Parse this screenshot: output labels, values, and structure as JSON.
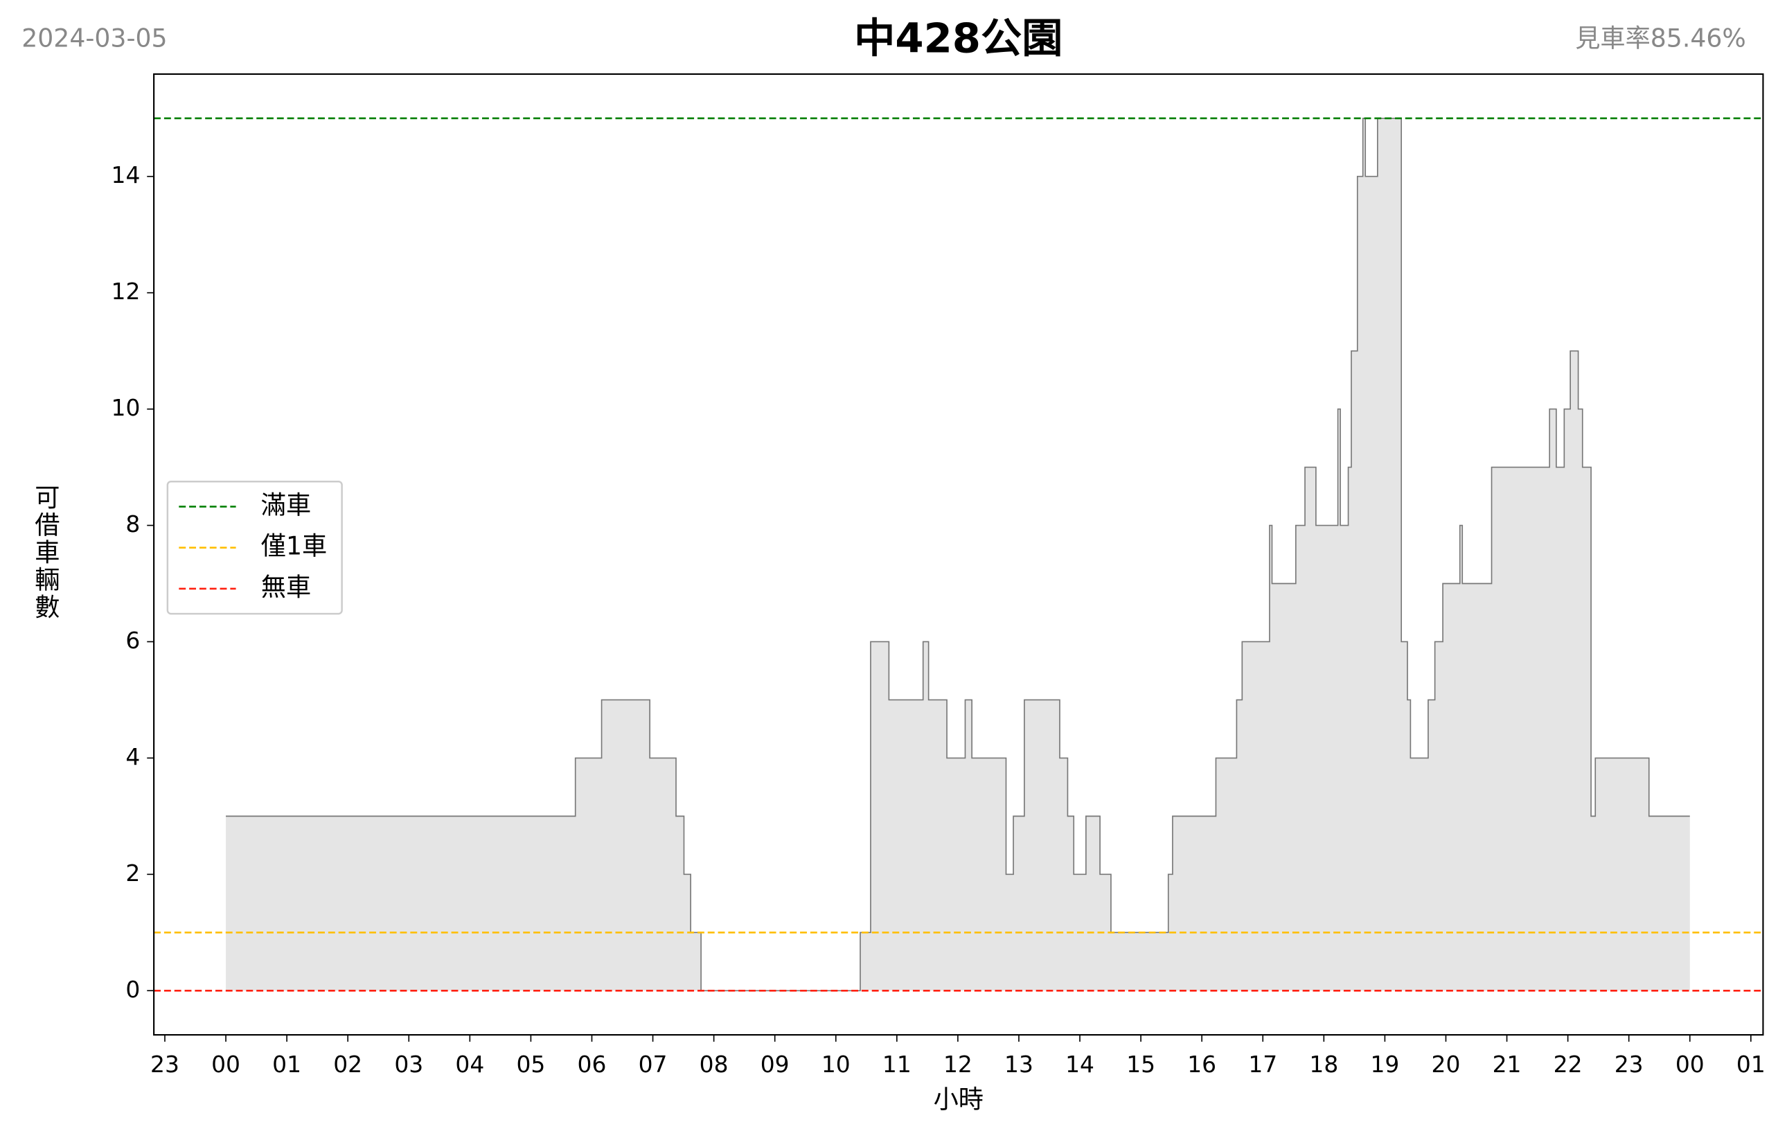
{
  "chart_data": {
    "type": "step-area",
    "title": "中428公園",
    "date_label": "2024-03-05",
    "annotation": "見車率85.46%",
    "xlabel": "小時",
    "ylabel": "可借車輛數",
    "xlim": [
      -1.18,
      25.2
    ],
    "ylim": [
      -0.76,
      15.76
    ],
    "xticks": [
      {
        "value": -1,
        "label": "23"
      },
      {
        "value": 0,
        "label": "00"
      },
      {
        "value": 1,
        "label": "01"
      },
      {
        "value": 2,
        "label": "02"
      },
      {
        "value": 3,
        "label": "03"
      },
      {
        "value": 4,
        "label": "04"
      },
      {
        "value": 5,
        "label": "05"
      },
      {
        "value": 6,
        "label": "06"
      },
      {
        "value": 7,
        "label": "07"
      },
      {
        "value": 8,
        "label": "08"
      },
      {
        "value": 9,
        "label": "09"
      },
      10,
      11,
      12,
      13,
      14,
      15,
      16,
      17,
      18,
      19,
      20,
      21,
      22,
      {
        "value": 23,
        "label": "23"
      },
      {
        "value": 24,
        "label": "00"
      },
      {
        "value": 25,
        "label": "01"
      }
    ],
    "yticks": [
      0,
      2,
      4,
      6,
      8,
      10,
      12,
      14
    ],
    "fill_color": "#e5e5e5",
    "line_color": "#777777",
    "x": [
      0,
      5.73,
      6.16,
      6.95,
      7.38,
      7.51,
      7.62,
      7.79,
      10.4,
      10.57,
      10.87,
      11.43,
      11.52,
      11.82,
      12.12,
      12.23,
      12.79,
      12.91,
      13.09,
      13.67,
      13.8,
      13.9,
      14.1,
      14.33,
      14.51,
      15.45,
      15.52,
      16.23,
      16.57,
      16.66,
      17.11,
      17.15,
      17.54,
      17.69,
      17.87,
      18.23,
      18.27,
      18.4,
      18.45,
      18.55,
      18.64,
      18.68,
      18.88,
      19.27,
      19.37,
      19.42,
      19.71,
      19.82,
      19.95,
      20.23,
      20.27,
      20.75,
      21.7,
      21.81,
      21.94,
      22.04,
      22.17,
      22.24,
      22.38,
      22.45,
      23.33,
      24
    ],
    "values": [
      3,
      4,
      5,
      4,
      3,
      2,
      1,
      0,
      1,
      6,
      5,
      6,
      5,
      4,
      5,
      4,
      2,
      3,
      5,
      4,
      3,
      2,
      3,
      2,
      1,
      2,
      3,
      4,
      5,
      6,
      8,
      7,
      8,
      9,
      8,
      10,
      8,
      9,
      11,
      14,
      15,
      14,
      15,
      6,
      5,
      4,
      5,
      6,
      7,
      8,
      7,
      9,
      10,
      9,
      10,
      11,
      10,
      9,
      3,
      4,
      3,
      3
    ],
    "reference_lines": [
      {
        "name": "滿車",
        "color": "#008000",
        "value": 15
      },
      {
        "name": "僅1車",
        "color": "#ffbf00",
        "value": 1
      },
      {
        "name": "無車",
        "color": "#ff2010",
        "value": 0
      }
    ],
    "legend": "center-left"
  }
}
